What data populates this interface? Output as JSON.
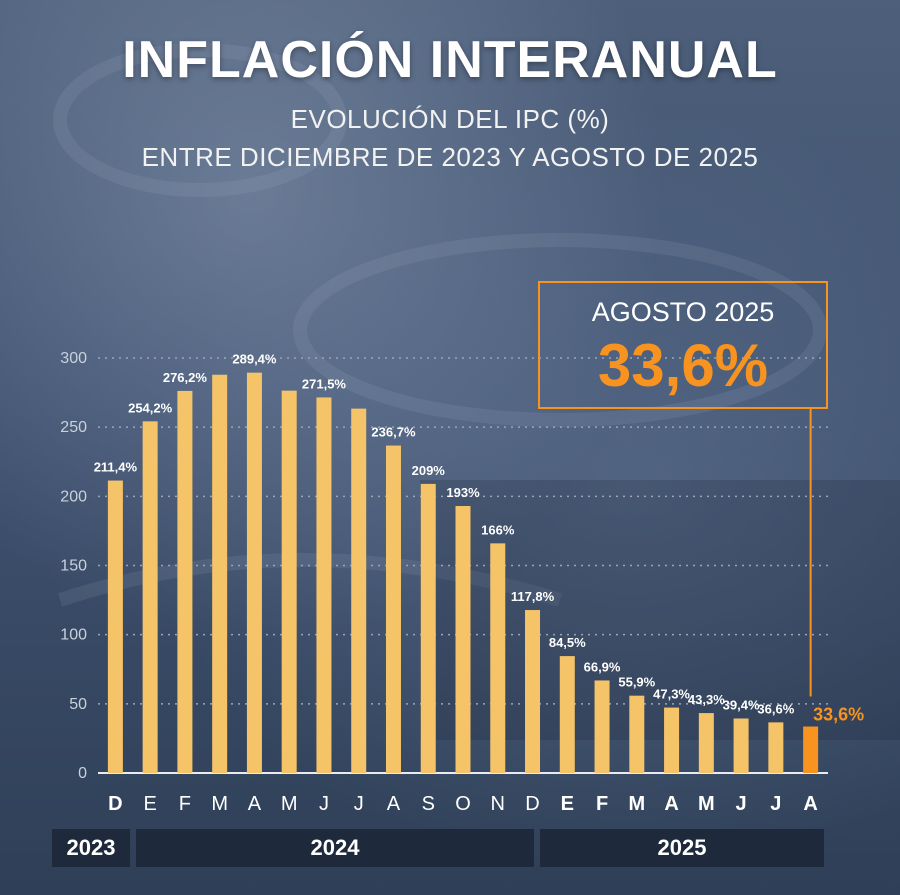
{
  "title": "INFLACIÓN INTERANUAL",
  "subtitle_line1": "EVOLUCIÓN DEL IPC (%)",
  "subtitle_line2": "ENTRE DICIEMBRE DE 2023 Y AGOSTO DE 2025",
  "callout": {
    "label": "AGOSTO 2025",
    "value": "33,6%"
  },
  "years": [
    "2023",
    "2024",
    "2025"
  ],
  "colors": {
    "bar": "#f5c469",
    "highlight": "#f7931e",
    "grid": "#9aa6b8",
    "text": "#ffffff",
    "year_bar": "#1e2a3b"
  },
  "chart_data": {
    "type": "bar",
    "title": "INFLACIÓN INTERANUAL",
    "ylim": [
      0,
      300
    ],
    "yticks": [
      0,
      50,
      100,
      150,
      200,
      250,
      300
    ],
    "grid": true,
    "categories": [
      "D",
      "E",
      "F",
      "M",
      "A",
      "M",
      "J",
      "J",
      "A",
      "S",
      "O",
      "N",
      "D",
      "E",
      "F",
      "M",
      "A",
      "M",
      "J",
      "J",
      "A"
    ],
    "values": [
      211.4,
      254.2,
      276.2,
      287.9,
      289.4,
      276.4,
      271.5,
      263.4,
      236.7,
      209,
      193,
      166,
      117.8,
      84.5,
      66.9,
      55.9,
      47.3,
      43.3,
      39.4,
      36.6,
      33.6
    ],
    "labels": [
      "211,4%",
      "254,2%",
      "276,2%",
      "",
      "289,4%",
      "",
      "271,5%",
      "",
      "236,7%",
      "209%",
      "193%",
      "166%",
      "117,8%",
      "84,5%",
      "66,9%",
      "55,9%",
      "47,3%",
      "43,3%",
      "39,4%",
      "36,6%",
      "33,6%"
    ],
    "bold_categories": [
      0,
      13,
      14,
      15,
      16,
      17,
      18,
      19,
      20
    ],
    "highlight_index": 20
  }
}
